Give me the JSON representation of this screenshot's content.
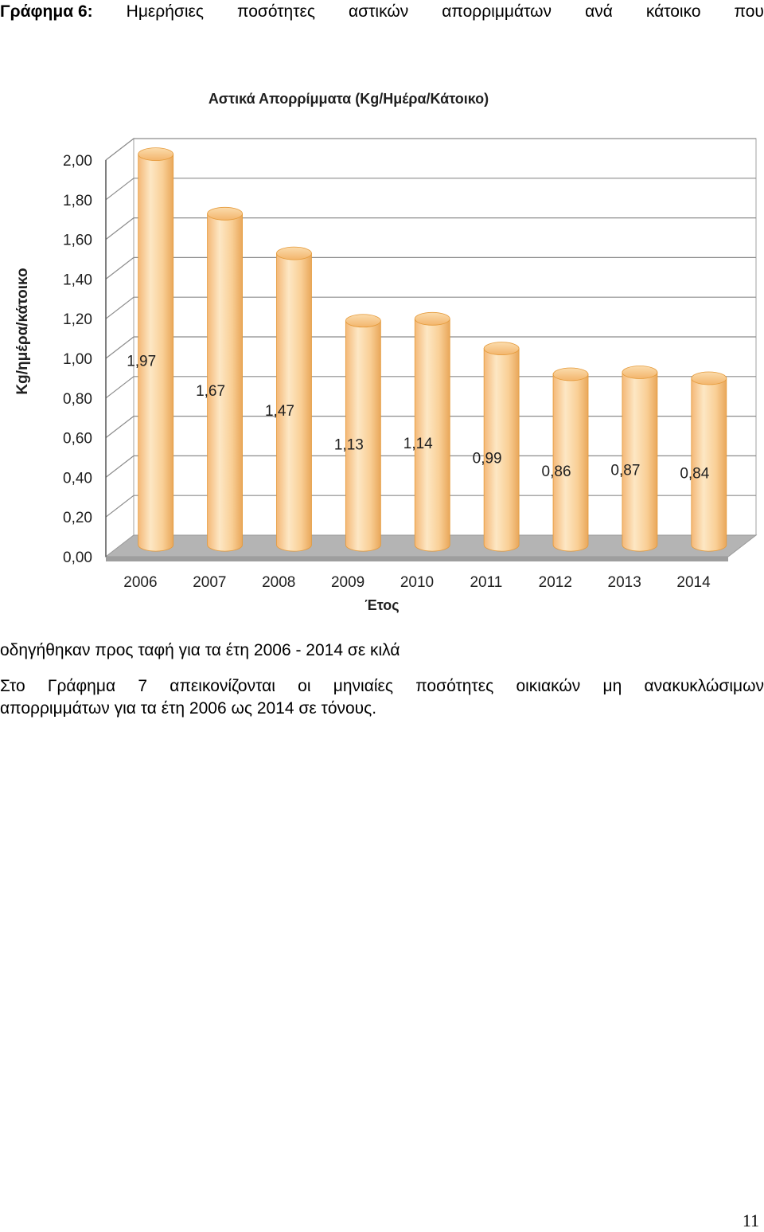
{
  "document": {
    "caption_label": "Γράφημα 6:",
    "caption_words": [
      "Ημερήσιες",
      "ποσότητες",
      "αστικών",
      "απορριμμάτων",
      "ανά",
      "κάτοικο",
      "που"
    ],
    "caption_continuation": "οδηγήθηκαν προς ταφή για τα έτη 2006 - 2014 σε κιλά",
    "paragraph_line1_words": [
      "Στο",
      "Γράφημα",
      "7",
      "απεικονίζονται",
      "οι",
      "μηνιαίες",
      "ποσότητες",
      "οικιακών",
      "μη",
      "ανακυκλώσιμων"
    ],
    "paragraph_line2": "απορριμμάτων για τα έτη 2006 ως 2014 σε τόνους.",
    "page_number": "11"
  },
  "chart_data": {
    "type": "bar",
    "title": "Αστικά Απορρίμματα (Kg/Ημέρα/Κάτοικο)",
    "xlabel": "Έτος",
    "ylabel": "Kg/ημέρα/κάτοικο",
    "categories": [
      "2006",
      "2007",
      "2008",
      "2009",
      "2010",
      "2011",
      "2012",
      "2013",
      "2014"
    ],
    "values": [
      1.97,
      1.67,
      1.47,
      1.13,
      1.14,
      0.99,
      0.86,
      0.87,
      0.84
    ],
    "data_labels": [
      "1,97",
      "1,67",
      "1,47",
      "1,13",
      "1,14",
      "0,99",
      "0,86",
      "0,87",
      "0,84"
    ],
    "yticks": [
      "0,00",
      "0,20",
      "0,40",
      "0,60",
      "0,80",
      "1,00",
      "1,20",
      "1,40",
      "1,60",
      "1,80",
      "2,00"
    ],
    "ylim": [
      0,
      2
    ],
    "grid": true,
    "bar_shape": "cylinder",
    "bar_color": "#f8c98a",
    "bar_edge_color": "#e59a3a",
    "floor_color": "#b4b4b4"
  }
}
